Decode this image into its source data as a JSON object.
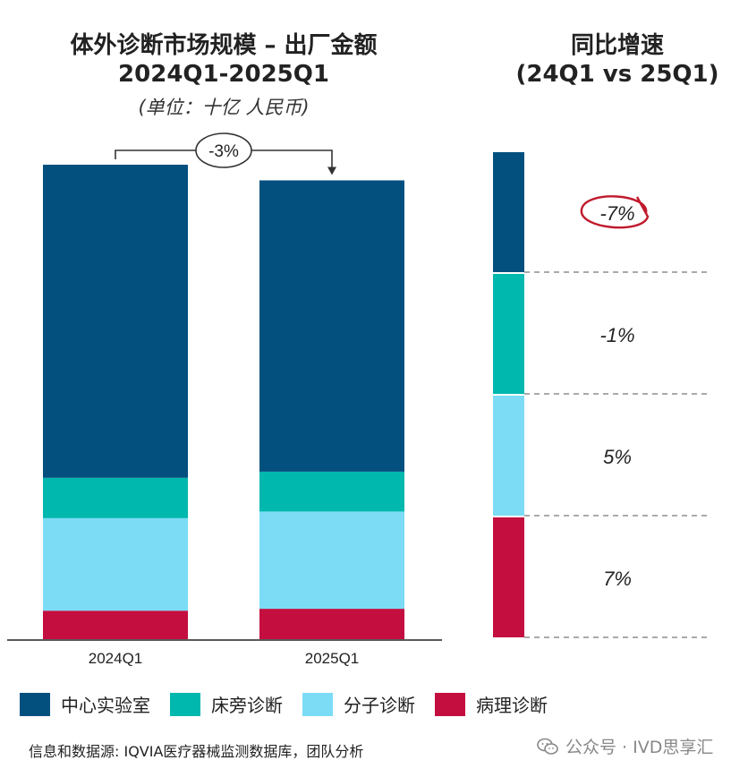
{
  "title": {
    "line1": "体外诊断市场规模 – 出厂金额",
    "line2": "2024Q1-2025Q1",
    "unit": "(单位：十亿 人民币)"
  },
  "right_title": {
    "line1": "同比增速",
    "line2": "(24Q1 vs 25Q1)"
  },
  "colors": {
    "central_lab": "#03507F",
    "poct": "#00B8AE",
    "molecular": "#7CDCF6",
    "pathology": "#C40E3F",
    "highlight_circle": "#C01A2C"
  },
  "chart_data": {
    "type": "bar",
    "stacked": true,
    "title": "体外诊断市场规模 – 出厂金额 2024Q1-2025Q1",
    "unit": "(单位：十亿 人民币)",
    "categories": [
      "2024Q1",
      "2025Q1"
    ],
    "series": [
      {
        "name": "病理诊断",
        "key": "pathology",
        "values": [
          6.0,
          6.4
        ]
      },
      {
        "name": "分子诊断",
        "key": "molecular",
        "values": [
          19.5,
          20.5
        ]
      },
      {
        "name": "床旁诊断",
        "key": "poct",
        "values": [
          8.5,
          8.4
        ]
      },
      {
        "name": "中心实验室",
        "key": "central_lab",
        "values": [
          66.0,
          61.4
        ]
      }
    ],
    "total_change": "-3%",
    "growth": [
      {
        "name": "中心实验室",
        "key": "central_lab",
        "label": "-7%",
        "highlight": true
      },
      {
        "name": "床旁诊断",
        "key": "poct",
        "label": "-1%",
        "highlight": false
      },
      {
        "name": "分子诊断",
        "key": "molecular",
        "label": "5%",
        "highlight": false
      },
      {
        "name": "病理诊断",
        "key": "pathology",
        "label": "7%",
        "highlight": false
      }
    ],
    "ylim": [
      0,
      100
    ]
  },
  "legend": [
    {
      "label": "中心实验室",
      "key": "central_lab"
    },
    {
      "label": "床旁诊断",
      "key": "poct"
    },
    {
      "label": "分子诊断",
      "key": "molecular"
    },
    {
      "label": "病理诊断",
      "key": "pathology"
    }
  ],
  "source": "信息和数据源: IQVIA医疗器械监测数据库，团队分析",
  "watermark": "公众号 · IVD思享汇",
  "watermark_icon": "wechat-icon"
}
